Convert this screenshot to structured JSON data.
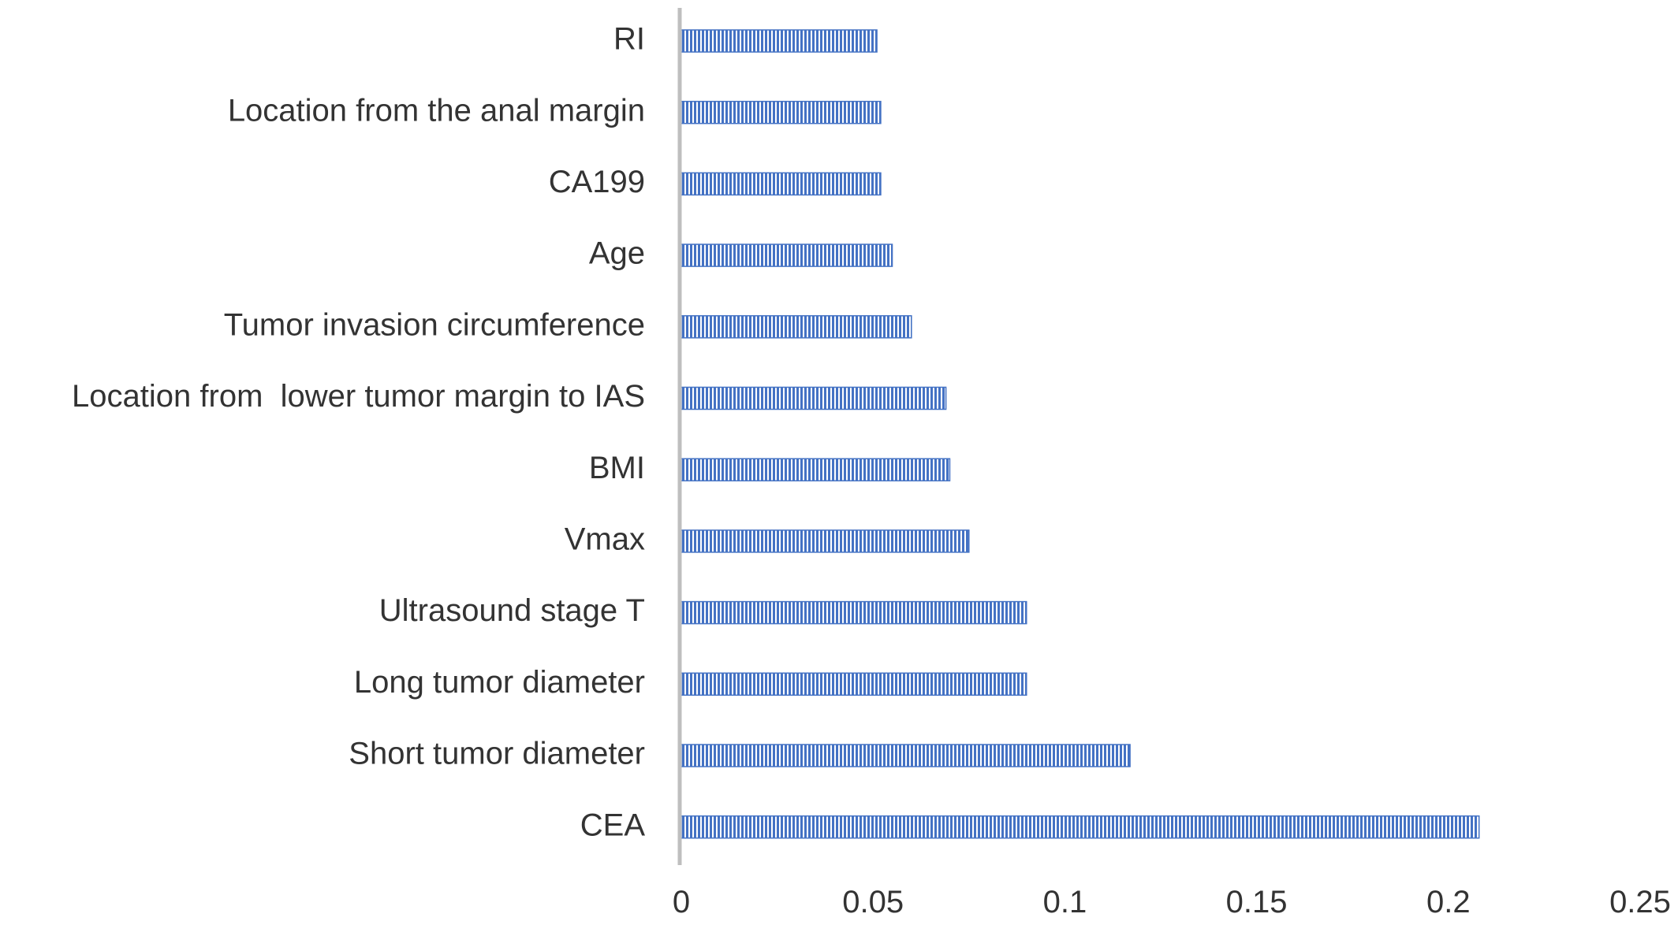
{
  "chart_data": {
    "type": "bar",
    "orientation": "horizontal",
    "title": "",
    "xlabel": "",
    "ylabel": "",
    "categories": [
      "RI",
      "Location from the anal margin",
      "CA199",
      "Age",
      "Tumor invasion circumference",
      "Location from  lower tumor margin to IAS",
      "BMI",
      "Vmax",
      "Ultrasound stage T",
      "Long tumor diameter",
      "Short tumor diameter",
      "CEA"
    ],
    "values": [
      0.051,
      0.052,
      0.052,
      0.055,
      0.06,
      0.069,
      0.07,
      0.075,
      0.09,
      0.09,
      0.117,
      0.208
    ],
    "xlim": [
      0,
      0.25
    ],
    "xticks": [
      "0",
      "0.05",
      "0.1",
      "0.15",
      "0.2",
      "0.25"
    ],
    "xtick_values": [
      0,
      0.05,
      0.1,
      0.15,
      0.2,
      0.25
    ],
    "grid": false,
    "legend": "none",
    "bar_color": "#4472C4",
    "bar_pattern": "vertical-stripes",
    "axis_color": "#bfbfbf"
  }
}
